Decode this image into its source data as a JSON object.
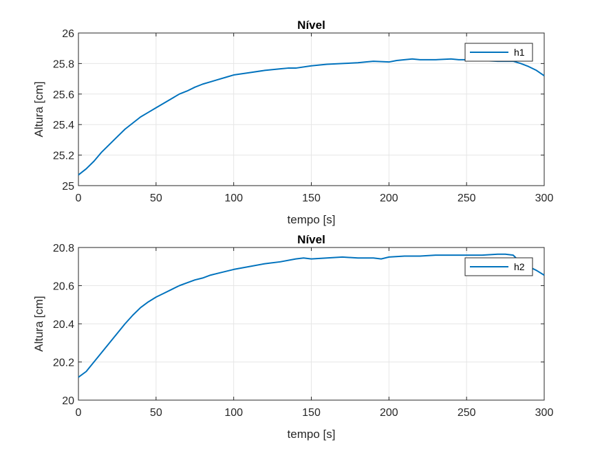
{
  "chart_data": [
    {
      "type": "line",
      "title": "Nível",
      "xlabel": "tempo [s]",
      "ylabel": "Altura [cm]",
      "xlim": [
        0,
        300
      ],
      "ylim": [
        25,
        26
      ],
      "xticks": [
        "0",
        "50",
        "100",
        "150",
        "200",
        "250",
        "300"
      ],
      "yticks": [
        "25",
        "25.2",
        "25.4",
        "25.6",
        "25.8",
        "26"
      ],
      "grid": true,
      "legend_position": "top-right",
      "series": [
        {
          "name": "h1",
          "color": "#0072BD",
          "x": [
            0,
            5,
            10,
            15,
            20,
            25,
            30,
            35,
            40,
            45,
            50,
            55,
            60,
            65,
            70,
            75,
            80,
            85,
            90,
            95,
            100,
            110,
            120,
            130,
            135,
            140,
            150,
            160,
            170,
            180,
            185,
            190,
            200,
            205,
            210,
            215,
            220,
            230,
            240,
            245,
            250,
            260,
            270,
            280,
            285,
            290,
            295,
            300
          ],
          "y": [
            25.07,
            25.11,
            25.16,
            25.22,
            25.27,
            25.32,
            25.37,
            25.41,
            25.45,
            25.48,
            25.51,
            25.54,
            25.57,
            25.6,
            25.62,
            25.645,
            25.665,
            25.68,
            25.695,
            25.71,
            25.725,
            25.74,
            25.755,
            25.765,
            25.77,
            25.77,
            25.785,
            25.795,
            25.8,
            25.805,
            25.81,
            25.815,
            25.81,
            25.82,
            25.825,
            25.83,
            25.825,
            25.825,
            25.83,
            25.825,
            25.825,
            25.82,
            25.815,
            25.815,
            25.8,
            25.78,
            25.755,
            25.72
          ]
        }
      ]
    },
    {
      "type": "line",
      "title": "Nível",
      "xlabel": "tempo [s]",
      "ylabel": "Altura [cm]",
      "xlim": [
        0,
        300
      ],
      "ylim": [
        20,
        20.8
      ],
      "xticks": [
        "0",
        "50",
        "100",
        "150",
        "200",
        "250",
        "300"
      ],
      "yticks": [
        "20",
        "20.2",
        "20.4",
        "20.6",
        "20.8"
      ],
      "grid": true,
      "legend_position": "top-right",
      "series": [
        {
          "name": "h2",
          "color": "#0072BD",
          "x": [
            0,
            5,
            10,
            15,
            20,
            25,
            30,
            35,
            40,
            45,
            50,
            55,
            60,
            65,
            70,
            75,
            80,
            85,
            90,
            95,
            100,
            110,
            120,
            130,
            140,
            145,
            150,
            160,
            170,
            180,
            190,
            195,
            200,
            210,
            220,
            230,
            240,
            250,
            260,
            270,
            275,
            280,
            285,
            290,
            295,
            300
          ],
          "y": [
            20.12,
            20.15,
            20.2,
            20.25,
            20.3,
            20.35,
            20.4,
            20.445,
            20.485,
            20.515,
            20.54,
            20.56,
            20.58,
            20.6,
            20.615,
            20.63,
            20.64,
            20.655,
            20.665,
            20.675,
            20.685,
            20.7,
            20.715,
            20.725,
            20.74,
            20.745,
            20.74,
            20.745,
            20.75,
            20.745,
            20.745,
            20.74,
            20.75,
            20.755,
            20.755,
            20.76,
            20.76,
            20.76,
            20.76,
            20.765,
            20.765,
            20.76,
            20.72,
            20.7,
            20.68,
            20.655
          ]
        }
      ]
    }
  ]
}
